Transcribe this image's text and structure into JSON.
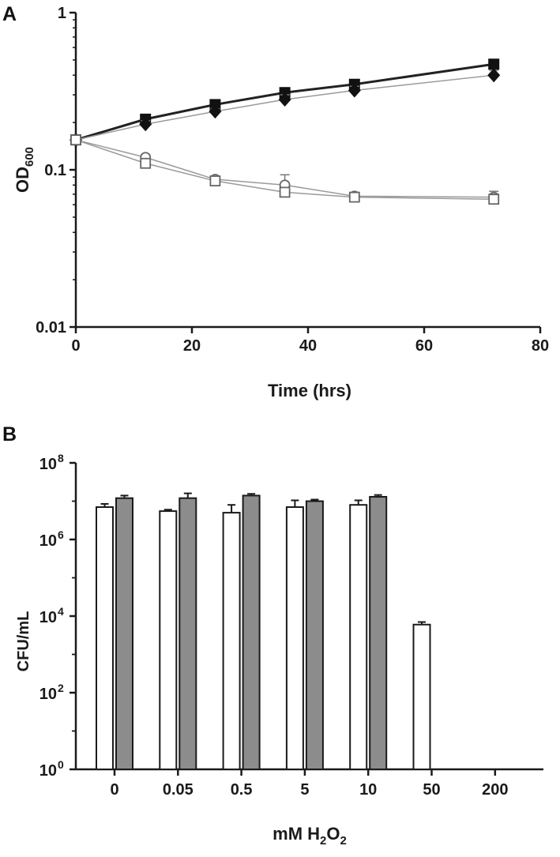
{
  "figure": {
    "panel_a_label": "A",
    "panel_b_label": "B"
  },
  "colors": {
    "axis": "#1a1a1a",
    "filled_marker": "#111111",
    "open_marker": "#666666",
    "bar_open": "#ffffff",
    "bar_gray": "#8c8c8c",
    "line": "#222222",
    "light_line": "#9a9a9a"
  },
  "chart_data": [
    {
      "type": "line",
      "panel": "A",
      "title": "",
      "xlabel": "Time (hrs)",
      "ylabel_main": "OD",
      "ylabel_sub": "600",
      "x_scale": "linear",
      "y_scale": "log",
      "xlim": [
        0,
        80
      ],
      "ylim": [
        0.01,
        1
      ],
      "x_ticks": [
        0,
        20,
        40,
        60,
        80
      ],
      "x_tick_labels": [
        "0",
        "20",
        "40",
        "60",
        "80"
      ],
      "y_ticks": [
        0.01,
        0.1,
        1
      ],
      "y_tick_labels": [
        "0.01",
        "0.1",
        "1"
      ],
      "grid": false,
      "legend": "none",
      "x": [
        0,
        12,
        24,
        36,
        48,
        72
      ],
      "series": [
        {
          "marker": "filled-square",
          "values": [
            0.155,
            0.21,
            0.26,
            0.31,
            0.35,
            0.47
          ],
          "errors": [
            0.005,
            0.01,
            0.01,
            0.02,
            0.02,
            0.03
          ]
        },
        {
          "marker": "filled-diamond",
          "values": [
            0.155,
            0.195,
            0.235,
            0.28,
            0.32,
            0.4
          ],
          "errors": [
            0.005,
            0.01,
            0.01,
            0.02,
            0.02,
            0.03
          ]
        },
        {
          "marker": "open-circle",
          "values": [
            0.155,
            0.12,
            0.087,
            0.08,
            0.068,
            0.067
          ],
          "errors": [
            0.005,
            0.005,
            0.004,
            0.013,
            0.003,
            0.006
          ]
        },
        {
          "marker": "open-square",
          "values": [
            0.155,
            0.11,
            0.085,
            0.072,
            0.067,
            0.065
          ],
          "errors": [
            0.005,
            0.005,
            0.003,
            0.005,
            0.003,
            0.005
          ]
        }
      ]
    },
    {
      "type": "bar",
      "panel": "B",
      "title": "",
      "xlabel_main": "mM H",
      "xlabel_sub1": "2",
      "xlabel_mid": "O",
      "xlabel_sub2": "2",
      "ylabel": "CFU/mL",
      "y_scale": "log",
      "ylim": [
        1,
        100000000
      ],
      "y_ticks": [
        1,
        100,
        10000,
        1000000,
        100000000
      ],
      "y_tick_base": [
        "10",
        "10",
        "10",
        "10",
        "10"
      ],
      "y_tick_exp": [
        "0",
        "2",
        "4",
        "6",
        "8"
      ],
      "grid": false,
      "legend": "none",
      "categories": [
        "0",
        "0.05",
        "0.5",
        "5",
        "10",
        "50",
        "200"
      ],
      "series": [
        {
          "fill": "white",
          "values": [
            7000000,
            5500000,
            5000000,
            7000000,
            8000000,
            6000,
            null
          ],
          "errors": [
            1500000,
            500000,
            3000000,
            3500000,
            2500000,
            1000,
            null
          ]
        },
        {
          "fill": "gray",
          "values": [
            12000000,
            12000000,
            14000000,
            10000000,
            13000000,
            null,
            null
          ],
          "errors": [
            2000000,
            4000000,
            1500000,
            1000000,
            1500000,
            null,
            null
          ]
        }
      ]
    }
  ]
}
